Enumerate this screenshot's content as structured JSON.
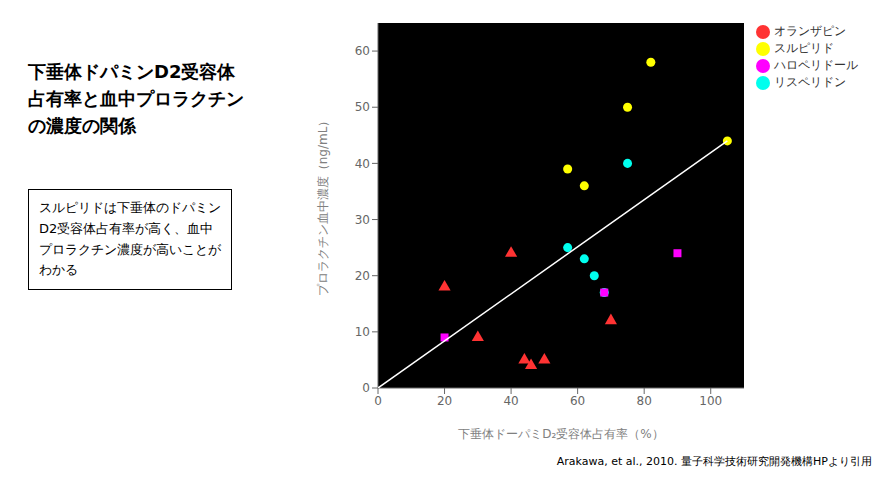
{
  "chart_data": {
    "type": "scatter",
    "title": "下垂体ドパミンD2受容体\n占有率と血中プロラクチン\nの濃度の関係",
    "annotations": [
      "スルピリドは下垂体のドパミン\nD2受容体占有率が高く、血中\nプロラクチン濃度が高いことが\nわかる",
      "Arakawa, et al., 2010. 量子科学技術研究開発機構HPより引用"
    ],
    "xlabel": "下垂体ドーパミD₂受容体占有率（%）",
    "ylabel": "プロラクチン血中濃度（ng/mL）",
    "series": [
      {
        "name": "リスペリドン",
        "color": "#00ffee",
        "marker": "circle",
        "x": [
          57,
          62,
          65,
          68,
          75
        ],
        "y": [
          25,
          23,
          20,
          17,
          40
        ]
      },
      {
        "name": "オランザピン",
        "color": "#ff3333",
        "marker": "triangle",
        "x": [
          20,
          30,
          40,
          44,
          46,
          50,
          70
        ],
        "y": [
          18,
          9,
          24,
          5,
          4,
          5,
          12
        ]
      },
      {
        "name": "ハロペリドール",
        "color": "#ff00ff",
        "marker": "square",
        "x": [
          20,
          68,
          90
        ],
        "y": [
          9,
          17,
          24
        ]
      },
      {
        "name": "スルピリド",
        "color": "#ffff00",
        "marker": "circle",
        "x": [
          57,
          62,
          75,
          82,
          105
        ],
        "y": [
          39,
          36,
          50,
          58,
          44
        ]
      },
      {
        "type": "line",
        "color": "#ffffff",
        "x": [
          0,
          105
        ],
        "y": [
          0,
          44
        ]
      }
    ],
    "xlim": [
      0,
      110
    ],
    "ylim": [
      0,
      65
    ],
    "xticks": [
      0,
      20,
      40,
      60,
      80,
      100
    ],
    "yticks": [
      0,
      10,
      20,
      30,
      40,
      50,
      60
    ],
    "grid": false,
    "legend": "upper right"
  }
}
